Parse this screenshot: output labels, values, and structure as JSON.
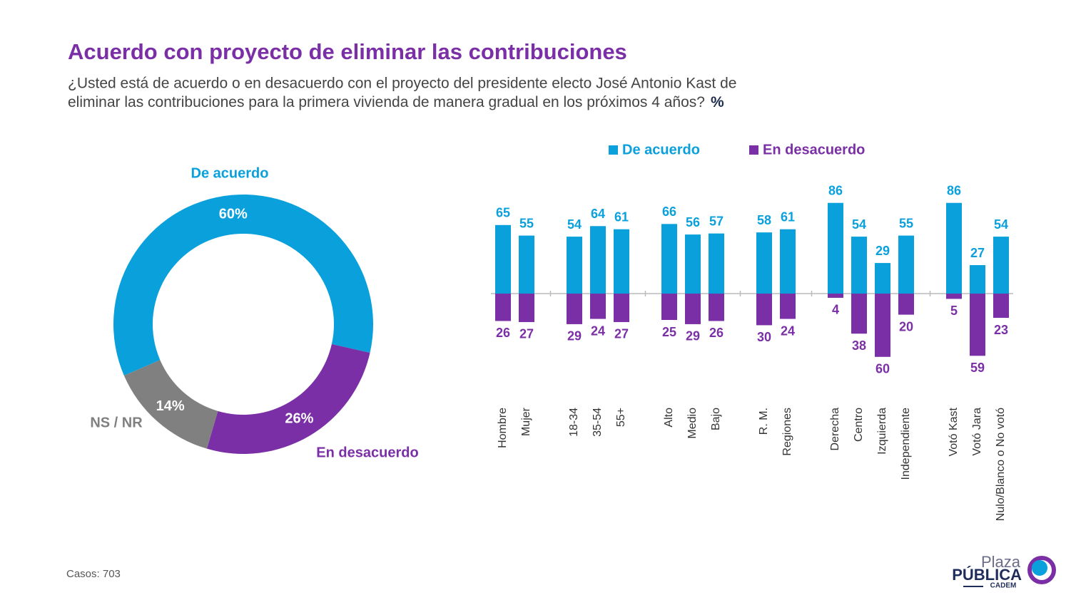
{
  "title": "Acuerdo con proyecto de eliminar las contribuciones",
  "subtitle": [
    "¿Usted está de acuerdo o en desacuerdo con el proyecto del presidente electo José Antonio Kast de",
    "eliminar las contribuciones para la primera vivienda de manera gradual en los próximos 4 años?"
  ],
  "subtitle_unit": "%",
  "footnote": "Casos: 703",
  "logo": {
    "top": "Plaza",
    "middle": "PÚBLICA",
    "bottom": "CADEM"
  },
  "chart_data": [
    {
      "type": "pie",
      "donut": true,
      "categories": [
        "De acuerdo",
        "En desacuerdo",
        "NS / NR"
      ],
      "values": [
        60,
        26,
        14
      ],
      "value_labels": [
        "60%",
        "26%",
        "14%"
      ],
      "colors": [
        "#0aa0dc",
        "#7b2fa6",
        "#808080"
      ]
    },
    {
      "type": "bar",
      "categories": [
        "Hombre",
        "Mujer",
        "18-34",
        "35-54",
        "55+",
        "Alto",
        "Medio",
        "Bajo",
        "R. M.",
        "Regiones",
        "Derecha",
        "Centro",
        "Izquierda",
        "Independiente",
        "Votó Kast",
        "Votó Jara",
        "Nulo/Blanco o No votó"
      ],
      "series": [
        {
          "name": "De acuerdo",
          "color": "#0aa0dc",
          "values": [
            65,
            55,
            54,
            64,
            61,
            66,
            56,
            57,
            58,
            61,
            86,
            54,
            29,
            55,
            86,
            27,
            54
          ]
        },
        {
          "name": "En desacuerdo",
          "color": "#7b2fa6",
          "values": [
            26,
            27,
            29,
            24,
            27,
            25,
            29,
            26,
            30,
            24,
            4,
            38,
            60,
            20,
            5,
            59,
            23
          ]
        }
      ]
    }
  ]
}
